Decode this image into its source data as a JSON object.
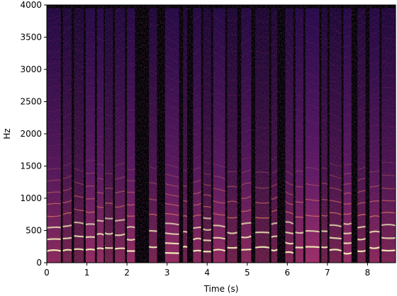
{
  "chart_data": {
    "type": "heatmap",
    "title": "",
    "xlabel": "Time (s)",
    "ylabel": "Hz",
    "xlim": [
      0,
      8.7
    ],
    "ylim": [
      0,
      4000
    ],
    "x_ticks": [
      0,
      1,
      2,
      3,
      4,
      5,
      6,
      7,
      8
    ],
    "y_ticks": [
      0,
      500,
      1000,
      1500,
      2000,
      2500,
      3000,
      3500,
      4000
    ],
    "colormap": "magma",
    "colors": {
      "background": "#000004",
      "low": "#2c115f",
      "mid": "#b73779",
      "high": "#fc8961",
      "peak": "#fcfdbf"
    },
    "voiced_segments_s": [
      [
        0.0,
        0.35
      ],
      [
        0.4,
        0.62
      ],
      [
        0.68,
        0.92
      ],
      [
        0.97,
        1.2
      ],
      [
        1.25,
        1.42
      ],
      [
        1.45,
        1.65
      ],
      [
        1.7,
        1.95
      ],
      [
        2.0,
        2.2
      ],
      [
        2.55,
        2.75
      ],
      [
        2.95,
        3.3
      ],
      [
        3.4,
        3.5
      ],
      [
        3.65,
        3.85
      ],
      [
        3.9,
        4.1
      ],
      [
        4.15,
        4.45
      ],
      [
        4.5,
        4.75
      ],
      [
        4.85,
        5.1
      ],
      [
        5.2,
        5.55
      ],
      [
        5.6,
        5.75
      ],
      [
        5.95,
        6.15
      ],
      [
        6.2,
        6.4
      ],
      [
        6.45,
        6.8
      ],
      [
        6.85,
        7.0
      ],
      [
        7.05,
        7.35
      ],
      [
        7.4,
        7.6
      ],
      [
        7.75,
        7.95
      ],
      [
        8.05,
        8.3
      ],
      [
        8.35,
        8.7
      ]
    ],
    "fundamental_hz_range": [
      150,
      250
    ],
    "silent_gaps_s": [
      [
        2.25,
        2.5
      ],
      [
        3.55,
        3.6
      ],
      [
        5.8,
        5.9
      ]
    ]
  }
}
